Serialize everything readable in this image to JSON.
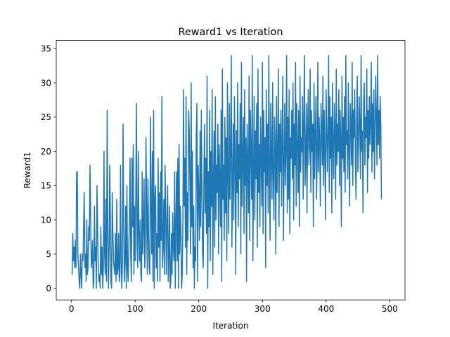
{
  "chart_data": {
    "type": "line",
    "title": "Reward1 vs Iteration",
    "xlabel": "Iteration",
    "ylabel": "Reward1",
    "xlim": [
      -24,
      524
    ],
    "ylim": [
      -1.7,
      36.2
    ],
    "xticks": [
      0,
      100,
      200,
      300,
      400,
      500
    ],
    "yticks": [
      0,
      5,
      10,
      15,
      20,
      25,
      30,
      35
    ],
    "grid": false,
    "legend": null,
    "series": [
      {
        "color": "#1f77b4",
        "x_start": 1,
        "x_step": 1,
        "values": [
          2,
          8,
          4,
          6,
          3,
          7,
          3,
          17,
          17,
          5,
          3,
          1,
          0,
          5,
          2,
          0,
          5,
          4,
          9,
          14,
          3,
          5,
          1,
          10,
          2,
          3,
          9,
          7,
          18,
          11,
          3,
          4,
          7,
          0,
          1,
          12,
          4,
          6,
          0,
          15,
          9,
          3,
          1,
          2,
          0,
          9,
          2,
          6,
          0,
          3,
          20,
          5,
          2,
          13,
          1,
          26,
          9,
          0,
          5,
          18,
          11,
          1,
          0,
          14,
          8,
          4,
          3,
          2,
          8,
          1,
          13,
          2,
          3,
          8,
          1,
          2,
          18,
          4,
          0,
          4,
          24,
          9,
          1,
          4,
          12,
          0,
          15,
          3,
          1,
          6,
          10,
          19,
          5,
          1,
          19,
          9,
          21,
          2,
          12,
          4,
          14,
          27,
          6,
          3,
          20,
          8,
          4,
          10,
          2,
          1,
          17,
          5,
          9,
          16,
          3,
          6,
          22,
          12,
          2,
          16,
          8,
          3,
          2,
          25,
          12,
          5,
          20,
          1,
          26,
          0,
          13,
          15,
          3,
          8,
          1,
          19,
          6,
          14,
          1,
          17,
          7,
          28,
          3,
          6,
          13,
          2,
          18,
          11,
          2,
          10,
          15,
          1,
          5,
          12,
          0,
          1,
          8,
          2,
          11,
          6,
          4,
          17,
          0,
          9,
          17,
          4,
          19,
          0,
          21,
          5,
          12,
          8,
          0,
          2,
          10,
          29,
          12,
          19,
          6,
          28,
          2,
          14,
          7,
          26,
          23,
          15,
          5,
          30,
          9,
          20,
          3,
          12,
          0,
          6,
          4,
          22,
          27,
          1,
          18,
          14,
          7,
          23,
          9,
          26,
          14,
          5,
          3,
          16,
          24,
          11,
          19,
          8,
          31,
          0,
          17,
          9,
          26,
          4,
          20,
          12,
          29,
          2,
          15,
          23,
          6,
          28,
          10,
          18,
          14,
          24,
          5,
          21,
          16,
          9,
          26,
          1,
          32,
          13,
          18,
          7,
          25,
          11,
          22,
          4,
          30,
          17,
          8,
          27,
          13,
          20,
          34,
          6,
          15,
          24,
          10,
          28,
          19,
          2,
          23,
          14,
          30,
          9,
          21,
          16,
          27,
          5,
          33,
          12,
          19,
          25,
          8,
          29,
          15,
          22,
          1,
          24,
          18,
          11,
          31,
          7,
          26,
          20,
          13,
          34,
          4,
          17,
          28,
          10,
          23,
          16,
          27,
          6,
          32,
          14,
          21,
          9,
          25,
          19,
          12,
          33,
          8,
          26,
          17,
          22,
          3,
          29,
          15,
          24,
          11,
          34,
          18,
          7,
          27,
          20,
          13,
          30,
          16,
          10,
          25,
          21,
          5,
          28,
          14,
          19,
          32,
          9,
          24,
          17,
          26,
          12,
          22,
          31,
          7,
          18,
          27,
          15,
          20,
          34,
          11,
          25,
          13,
          29,
          8,
          22,
          19,
          26,
          16,
          30,
          10,
          24,
          18,
          33,
          12,
          27,
          21,
          14,
          26,
          9,
          31,
          17,
          22,
          20,
          28,
          13,
          25,
          34,
          15,
          19,
          27,
          11,
          23,
          29,
          18,
          21,
          32,
          14,
          26,
          20,
          24,
          9,
          30,
          16,
          22,
          28,
          13,
          19,
          33,
          17,
          25,
          21,
          12,
          27,
          23,
          18,
          31,
          15,
          26,
          20,
          10,
          29,
          24,
          17,
          22,
          34,
          14,
          28,
          19,
          25,
          11,
          30,
          21,
          16,
          27,
          23,
          13,
          32,
          18,
          24,
          20,
          29,
          15,
          26,
          22,
          9,
          31,
          19,
          25,
          17,
          28,
          14,
          34,
          21,
          23,
          16,
          30,
          20,
          12,
          27,
          24,
          18,
          33,
          15,
          26,
          22,
          29,
          19,
          13,
          25,
          31,
          17,
          21,
          28,
          24,
          16,
          34,
          20,
          23,
          11,
          27,
          30,
          18,
          25,
          22,
          32,
          14,
          26,
          19,
          28,
          21,
          24,
          33,
          17,
          27,
          20,
          29,
          16,
          23,
          31,
          25,
          18,
          34,
          21,
          26,
          19,
          28,
          24,
          13
        ]
      }
    ]
  }
}
